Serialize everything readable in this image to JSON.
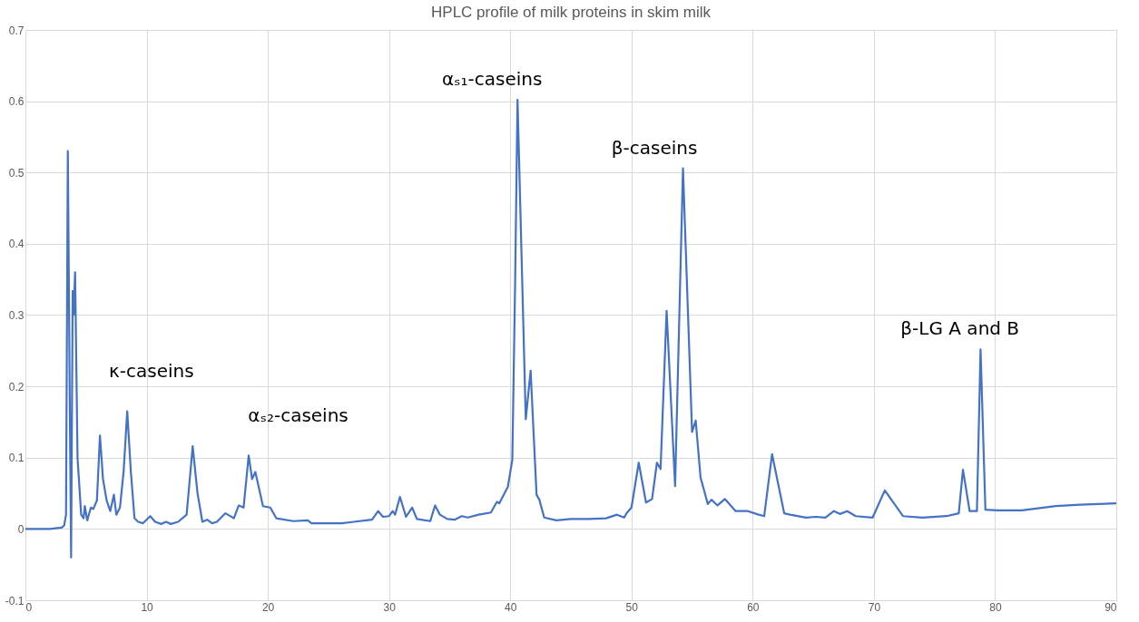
{
  "chart_data": {
    "type": "line",
    "title": "HPLC profile of milk proteins in skim milk",
    "x": [
      0,
      2,
      3,
      3.2,
      3.35,
      3.5,
      3.65,
      3.77,
      3.9,
      3.97,
      4.1,
      4.3,
      4.6,
      4.8,
      4.9,
      5.1,
      5.4,
      5.6,
      5.9,
      6.15,
      6.4,
      6.7,
      7.0,
      7.3,
      7.5,
      7.8,
      8.1,
      8.4,
      8.7,
      9.0,
      9.3,
      9.7,
      10.3,
      10.7,
      11.2,
      11.6,
      12.0,
      12.6,
      13.3,
      13.8,
      14.2,
      14.6,
      15.0,
      15.4,
      15.8,
      16.5,
      17.2,
      17.6,
      18.0,
      18.42,
      18.7,
      18.97,
      19.6,
      20.2,
      20.7,
      22.1,
      23.3,
      23.6,
      26.1,
      27.1,
      28.1,
      28.6,
      29.1,
      29.5,
      30.0,
      30.3,
      30.5,
      30.9,
      31.4,
      31.9,
      32.3,
      33.4,
      33.8,
      34.2,
      34.8,
      35.4,
      36.0,
      36.5,
      37.4,
      38.4,
      38.9,
      39.1,
      39.8,
      40.17,
      40.4,
      40.6,
      41.28,
      41.68,
      42.17,
      42.4,
      42.8,
      43.8,
      45.0,
      46.5,
      47.9,
      48.8,
      49.4,
      49.6,
      50.0,
      50.6,
      51.2,
      51.7,
      52.1,
      52.4,
      52.9,
      53.6,
      54.25,
      55.0,
      55.3,
      55.7,
      56.3,
      56.6,
      57.1,
      57.7,
      58.6,
      59.6,
      60.5,
      60.95,
      61.6,
      62.6,
      63.1,
      64.4,
      65.2,
      66.0,
      66.7,
      67.2,
      67.8,
      68.5,
      69.9,
      70.9,
      72.4,
      74.0,
      76.0,
      77.0,
      77.35,
      77.9,
      78.5,
      78.8,
      79.2,
      80.2,
      82.2,
      85.0,
      87.0,
      90.0
    ],
    "values": [
      0,
      0,
      0.002,
      0.005,
      0.02,
      0.53,
      0.2,
      -0.04,
      0.334,
      0.3,
      0.36,
      0.1,
      0.02,
      0.015,
      0.032,
      0.012,
      0.03,
      0.028,
      0.04,
      0.131,
      0.07,
      0.04,
      0.025,
      0.048,
      0.02,
      0.03,
      0.08,
      0.165,
      0.08,
      0.015,
      0.01,
      0.008,
      0.018,
      0.01,
      0.007,
      0.01,
      0.007,
      0.01,
      0.02,
      0.116,
      0.05,
      0.01,
      0.013,
      0.008,
      0.01,
      0.022,
      0.015,
      0.033,
      0.03,
      0.103,
      0.07,
      0.08,
      0.032,
      0.03,
      0.015,
      0.011,
      0.012,
      0.008,
      0.008,
      0.01,
      0.012,
      0.013,
      0.025,
      0.017,
      0.018,
      0.025,
      0.02,
      0.045,
      0.017,
      0.03,
      0.014,
      0.011,
      0.033,
      0.02,
      0.014,
      0.013,
      0.018,
      0.016,
      0.02,
      0.023,
      0.038,
      0.036,
      0.059,
      0.097,
      0.343,
      0.602,
      0.154,
      0.222,
      0.048,
      0.041,
      0.016,
      0.012,
      0.014,
      0.014,
      0.015,
      0.02,
      0.016,
      0.022,
      0.03,
      0.093,
      0.037,
      0.042,
      0.093,
      0.084,
      0.306,
      0.06,
      0.506,
      0.136,
      0.152,
      0.072,
      0.035,
      0.041,
      0.033,
      0.042,
      0.025,
      0.025,
      0.02,
      0.018,
      0.105,
      0.022,
      0.02,
      0.016,
      0.017,
      0.016,
      0.025,
      0.021,
      0.025,
      0.018,
      0.016,
      0.054,
      0.018,
      0.016,
      0.018,
      0.022,
      0.083,
      0.025,
      0.025,
      0.252,
      0.027,
      0.026,
      0.026,
      0.032,
      0.034,
      0.036
    ],
    "color": "#4472c4",
    "xlim": [
      0,
      90
    ],
    "xticks": [
      0,
      10,
      20,
      30,
      40,
      50,
      60,
      70,
      80,
      90
    ],
    "ylim": [
      -0.1,
      0.7
    ],
    "yticks": [
      -0.1,
      0,
      0.1,
      0.2,
      0.3,
      0.4,
      0.5,
      0.6,
      0.7
    ],
    "grid": true,
    "line_style": "solid",
    "annotations": [
      "κ-caseins",
      "αₛ₂-caseins",
      "αₛ₁-caseins",
      "β-caseins",
      "β-LG A and B"
    ]
  }
}
